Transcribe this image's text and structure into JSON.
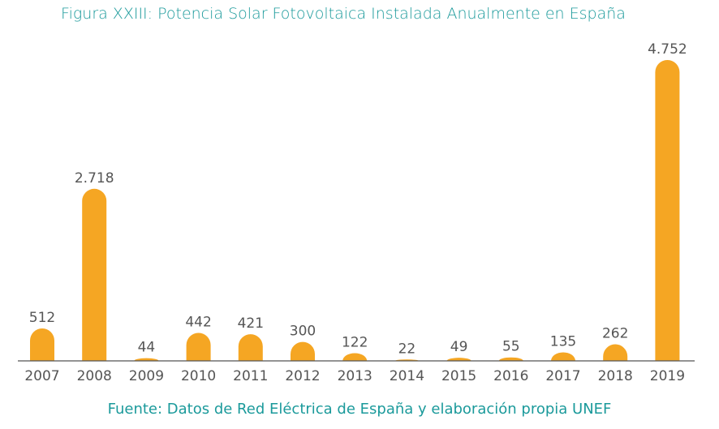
{
  "chart_data": {
    "type": "bar",
    "title": "Figura XXIII: Potencia Solar Fotovoltaica Instalada Anualmente en España",
    "source": "Fuente: Datos de Red Eléctrica de España y elaboración propia UNEF",
    "categories": [
      "2007",
      "2008",
      "2009",
      "2010",
      "2011",
      "2012",
      "2013",
      "2014",
      "2015",
      "2016",
      "2017",
      "2018",
      "2019"
    ],
    "values": [
      512,
      2718,
      44,
      442,
      421,
      300,
      122,
      22,
      49,
      55,
      135,
      262,
      4752
    ],
    "data_labels": [
      "512",
      "2.718",
      "44",
      "442",
      "421",
      "300",
      "122",
      "22",
      "49",
      "55",
      "135",
      "262",
      "4.752"
    ],
    "xlabel": "",
    "ylabel": "",
    "ylim": [
      0,
      4752
    ],
    "grid": false,
    "bar_color": "#f5a623",
    "title_color": "#1b9a9b"
  }
}
